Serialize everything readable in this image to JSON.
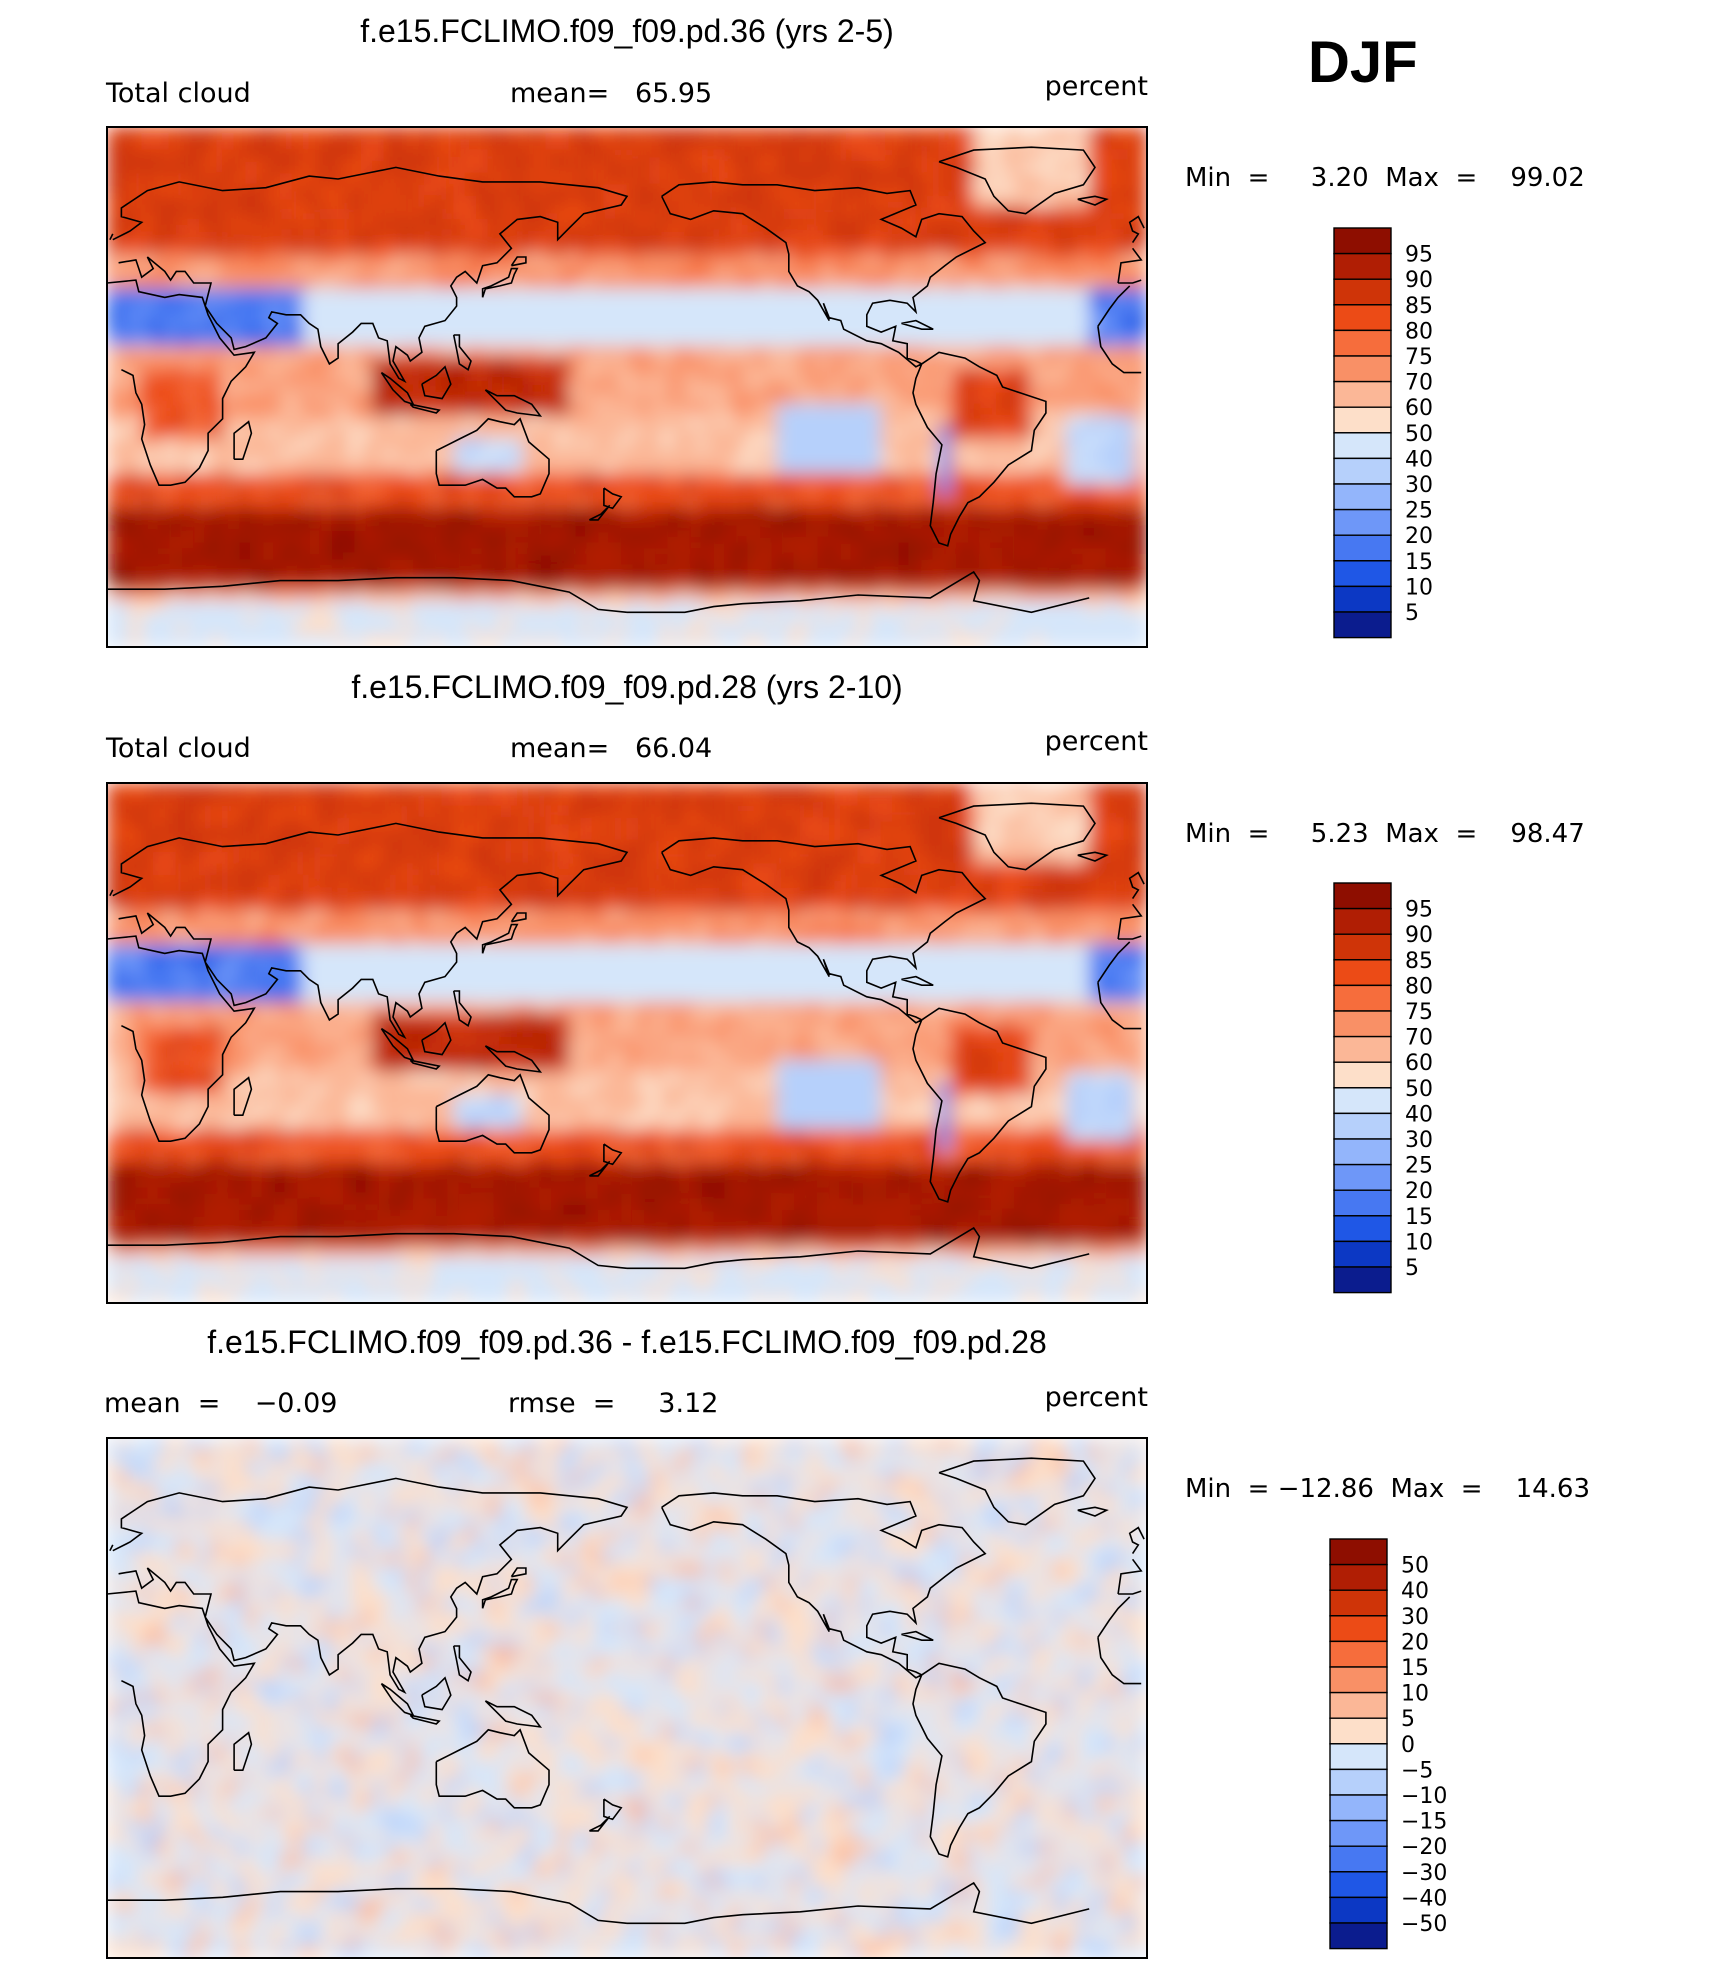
{
  "season": "DJF",
  "panels": [
    {
      "title": "f.e15.FCLIMO.f09_f09.pd.36 (yrs 2-5)",
      "left_label": "Total cloud",
      "center_label": "mean=   65.95",
      "units": "percent",
      "minmax": "Min  =     3.20  Max  =    99.02"
    },
    {
      "title": "f.e15.FCLIMO.f09_f09.pd.28 (yrs 2-10)",
      "left_label": "Total cloud",
      "center_label": "mean=   66.04",
      "units": "percent",
      "minmax": "Min  =     5.23  Max  =    98.47"
    },
    {
      "title": "f.e15.FCLIMO.f09_f09.pd.36 - f.e15.FCLIMO.f09_f09.pd.28",
      "left_label": "mean  =    −0.09",
      "center_label": "rmse  =     3.12",
      "units": "percent",
      "minmax": "Min  = −12.86  Max  =    14.63"
    }
  ],
  "chart_data": [
    {
      "type": "heatmap",
      "title": "f.e15.FCLIMO.f09_f09.pd.36 (yrs 2-5)",
      "variable": "Total cloud",
      "units": "percent",
      "mean": 65.95,
      "min": 3.2,
      "max": 99.02,
      "colorbar": {
        "labels": [
          "95",
          "90",
          "85",
          "80",
          "75",
          "70",
          "60",
          "50",
          "40",
          "30",
          "25",
          "20",
          "15",
          "10",
          "5"
        ],
        "colors": [
          "#8e0e00",
          "#b01e04",
          "#cf3408",
          "#ec4b16",
          "#f66d3c",
          "#f99066",
          "#fbb797",
          "#fddfc9",
          "#d5e6fa",
          "#b6d0fb",
          "#93b5fb",
          "#6e97f8",
          "#4778f2",
          "#1f57e6",
          "#0c38c4",
          "#0b1c8e"
        ]
      }
    },
    {
      "type": "heatmap",
      "title": "f.e15.FCLIMO.f09_f09.pd.28 (yrs 2-10)",
      "variable": "Total cloud",
      "units": "percent",
      "mean": 66.04,
      "min": 5.23,
      "max": 98.47,
      "colorbar": {
        "labels": [
          "95",
          "90",
          "85",
          "80",
          "75",
          "70",
          "60",
          "50",
          "40",
          "30",
          "25",
          "20",
          "15",
          "10",
          "5"
        ],
        "colors": [
          "#8e0e00",
          "#b01e04",
          "#cf3408",
          "#ec4b16",
          "#f66d3c",
          "#f99066",
          "#fbb797",
          "#fddfc9",
          "#d5e6fa",
          "#b6d0fb",
          "#93b5fb",
          "#6e97f8",
          "#4778f2",
          "#1f57e6",
          "#0c38c4",
          "#0b1c8e"
        ]
      }
    },
    {
      "type": "heatmap",
      "title": "f.e15.FCLIMO.f09_f09.pd.36 - f.e15.FCLIMO.f09_f09.pd.28",
      "units": "percent",
      "mean": -0.09,
      "rmse": 3.12,
      "min": -12.86,
      "max": 14.63,
      "colorbar": {
        "labels": [
          "50",
          "40",
          "30",
          "20",
          "15",
          "10",
          "5",
          "0",
          "−5",
          "−10",
          "−15",
          "−20",
          "−30",
          "−40",
          "−50"
        ],
        "colors": [
          "#8e0e00",
          "#b01e04",
          "#cf3408",
          "#ec4b16",
          "#f66d3c",
          "#f99066",
          "#fbb797",
          "#fddfc9",
          "#d5e6fa",
          "#b6d0fb",
          "#93b5fb",
          "#6e97f8",
          "#4778f2",
          "#1f57e6",
          "#0c38c4",
          "#0b1c8e"
        ]
      }
    }
  ]
}
